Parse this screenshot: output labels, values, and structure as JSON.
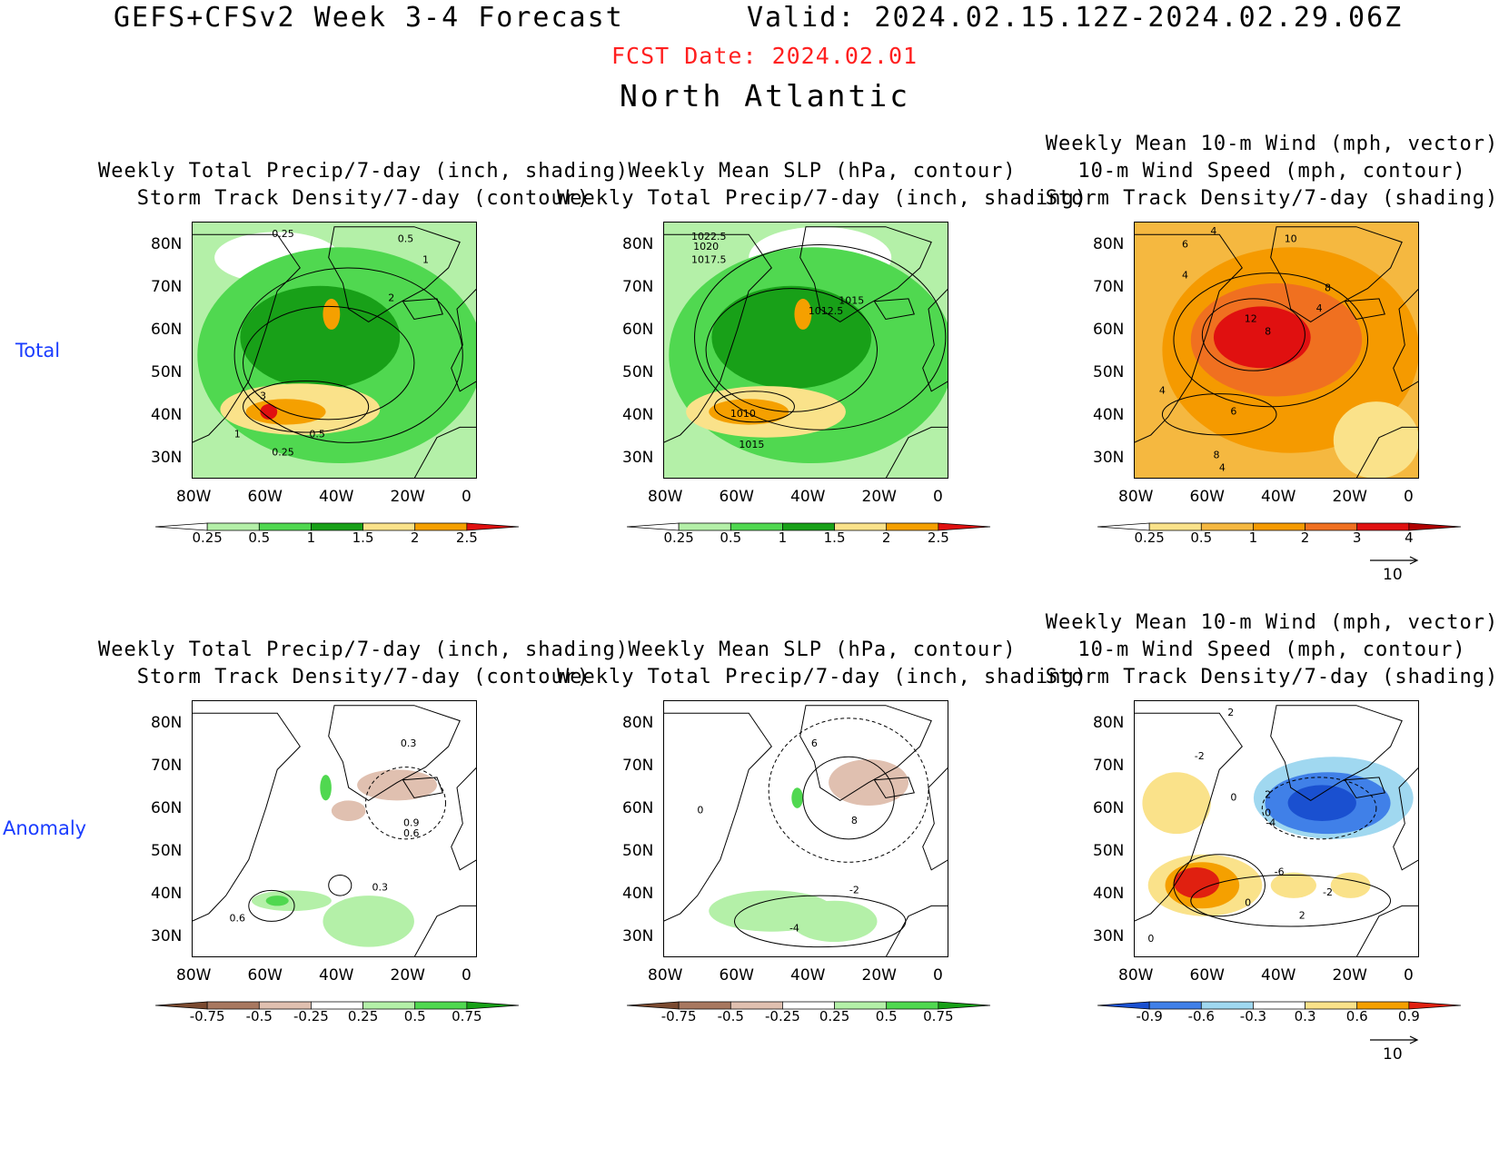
{
  "header": {
    "title": "GEFS+CFSv2 Week 3-4 Forecast",
    "valid": "Valid: 2024.02.15.12Z-2024.02.29.06Z",
    "fcst_date": "FCST Date: 2024.02.01",
    "region": "North Atlantic"
  },
  "rows": [
    {
      "label": "Total"
    },
    {
      "label": "Anomaly"
    }
  ],
  "axes": {
    "lat_ticks": [
      "80N",
      "70N",
      "60N",
      "50N",
      "40N",
      "30N"
    ],
    "lon_ticks": [
      "80W",
      "60W",
      "40W",
      "20W",
      "0"
    ]
  },
  "panels": [
    {
      "title": [
        "Weekly Total Precip/7-day (inch, shading)",
        "Storm Track Density/7-day (contour)"
      ],
      "colorbar": {
        "labels": [
          "0.25",
          "0.5",
          "1",
          "1.5",
          "2",
          "2.5"
        ],
        "colors": [
          "#ffffff",
          "#b4f0a8",
          "#50d850",
          "#18a018",
          "#fae28a",
          "#f5a000",
          "#e01010"
        ]
      },
      "contour_labels": [
        "0.25",
        "0.5",
        "1",
        "2",
        "3",
        "1",
        "0.5",
        "0.25"
      ]
    },
    {
      "title": [
        "Weekly Mean SLP (hPa, contour)",
        "Weekly Total Precip/7-day (inch, shading)"
      ],
      "colorbar": {
        "labels": [
          "0.25",
          "0.5",
          "1",
          "1.5",
          "2",
          "2.5"
        ],
        "colors": [
          "#ffffff",
          "#b4f0a8",
          "#50d850",
          "#18a018",
          "#fae28a",
          "#f5a000",
          "#e01010"
        ]
      },
      "contour_labels": [
        "1022.5",
        "1020",
        "1017.5",
        "1015",
        "1012.5",
        "1010",
        "1015"
      ]
    },
    {
      "title": [
        "Weekly Mean 10-m Wind (mph, vector)",
        "10-m Wind Speed (mph, contour)",
        "Storm Track Density/7-day (shading)"
      ],
      "colorbar": {
        "labels": [
          "0.25",
          "0.5",
          "1",
          "2",
          "3",
          "4"
        ],
        "colors": [
          "#ffffff",
          "#fae28a",
          "#f5b840",
          "#f59a00",
          "#f07020",
          "#e01010",
          "#b00000"
        ]
      },
      "contour_labels": [
        "4",
        "6",
        "10",
        "4",
        "8",
        "12",
        "8",
        "4",
        "4",
        "6",
        "8",
        "4"
      ],
      "vector_ref": "10"
    },
    {
      "title": [
        "Weekly Total Precip/7-day (inch, shading)",
        "Storm Track Density/7-day (contour)"
      ],
      "colorbar": {
        "labels": [
          "-0.75",
          "-0.5",
          "-0.25",
          "0.25",
          "0.5",
          "0.75"
        ],
        "colors": [
          "#7a4a30",
          "#a87860",
          "#e0c0b0",
          "#ffffff",
          "#b4f0a8",
          "#50d850",
          "#18a018"
        ]
      },
      "contour_labels": [
        "0.3",
        "0.9",
        "0.6",
        "0.3",
        "0.6"
      ]
    },
    {
      "title": [
        "Weekly Mean SLP (hPa, contour)",
        "Weekly Total Precip/7-day (inch, shading)"
      ],
      "colorbar": {
        "labels": [
          "-0.75",
          "-0.5",
          "-0.25",
          "0.25",
          "0.5",
          "0.75"
        ],
        "colors": [
          "#7a4a30",
          "#a87860",
          "#e0c0b0",
          "#ffffff",
          "#b4f0a8",
          "#50d850",
          "#18a018"
        ]
      },
      "contour_labels": [
        "6",
        "0",
        "8",
        "-2",
        "-4"
      ]
    },
    {
      "title": [
        "Weekly Mean 10-m Wind (mph, vector)",
        "10-m Wind Speed (mph, contour)",
        "Storm Track Density/7-day (shading)"
      ],
      "colorbar": {
        "labels": [
          "-0.9",
          "-0.6",
          "-0.3",
          "0.3",
          "0.6",
          "0.9"
        ],
        "colors": [
          "#1a50d0",
          "#4080e8",
          "#a0d8f0",
          "#ffffff",
          "#fae28a",
          "#f5a000",
          "#e02010"
        ]
      },
      "contour_labels": [
        "2",
        "-2",
        "0",
        "2",
        "0",
        "-4",
        "-6",
        "-2",
        "0",
        "2",
        "0"
      ],
      "vector_ref": "10"
    }
  ]
}
